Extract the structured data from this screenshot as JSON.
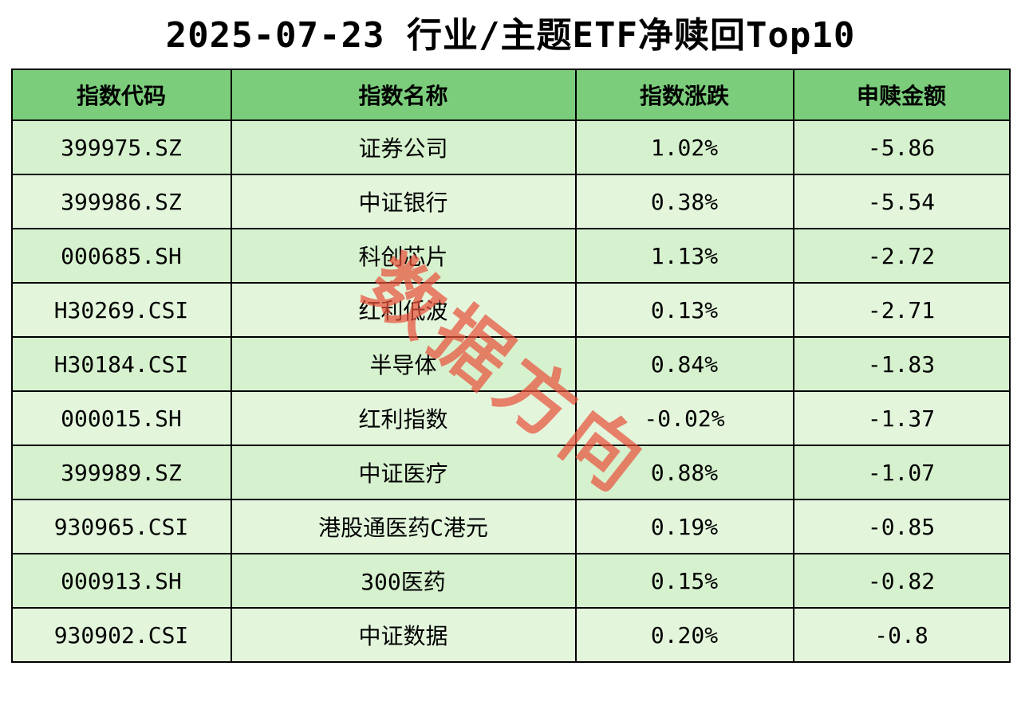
{
  "title": "2025-07-23 行业/主题ETF净赎回Top10",
  "watermark": "数据方向",
  "chart_data": {
    "type": "table",
    "title": "2025-07-23 行业/主题ETF净赎回Top10",
    "columns": [
      "指数代码",
      "指数名称",
      "指数涨跌",
      "申赎金额"
    ],
    "rows": [
      [
        "399975.SZ",
        "证券公司",
        "1.02%",
        "-5.86"
      ],
      [
        "399986.SZ",
        "中证银行",
        "0.38%",
        "-5.54"
      ],
      [
        "000685.SH",
        "科创芯片",
        "1.13%",
        "-2.72"
      ],
      [
        "H30269.CSI",
        "红利低波",
        "0.13%",
        "-2.71"
      ],
      [
        "H30184.CSI",
        "半导体",
        "0.84%",
        "-1.83"
      ],
      [
        "000015.SH",
        "红利指数",
        "-0.02%",
        "-1.37"
      ],
      [
        "399989.SZ",
        "中证医疗",
        "0.88%",
        "-1.07"
      ],
      [
        "930965.CSI",
        "港股通医药C港元",
        "0.19%",
        "-0.85"
      ],
      [
        "000913.SH",
        "300医药",
        "0.15%",
        "-0.82"
      ],
      [
        "930902.CSI",
        "中证数据",
        "0.20%",
        "-0.8"
      ]
    ]
  },
  "colors": {
    "header_bg": "#7BCD7B",
    "row_odd": "#D6F1CE",
    "row_even": "#E3F6DC",
    "watermark": "#E9543E",
    "border": "#000000",
    "title_text": "#000000"
  }
}
